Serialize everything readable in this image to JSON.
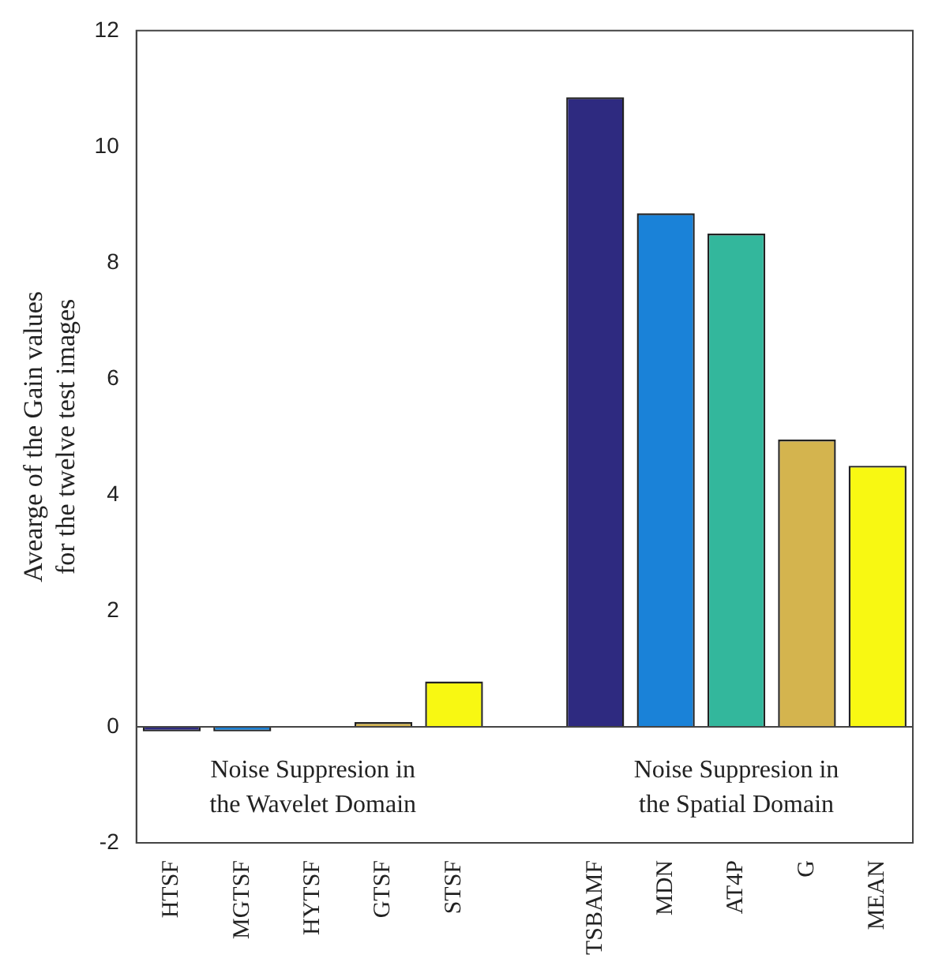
{
  "chart_data": {
    "type": "bar",
    "ylabel": "Avearge of the Gain values\nfor the twelve test images",
    "categories": [
      "HTSF",
      "MGTSF",
      "HYTSF",
      "GTSF",
      "STSF",
      null,
      "TSBAMF",
      "MDN",
      "AT4P",
      "G",
      "MEAN"
    ],
    "values": [
      -0.08,
      -0.08,
      0,
      0.08,
      0.78,
      null,
      10.85,
      8.85,
      8.5,
      4.95,
      4.5
    ],
    "colors": [
      "#2e2a80",
      "#1a82d8",
      "#33b79c",
      "#d4b44e",
      "#f8f812",
      null,
      "#2e2a80",
      "#1a82d8",
      "#33b79c",
      "#d4b44e",
      "#f8f812"
    ],
    "ylim": [
      -2,
      12
    ],
    "yticks": [
      -2,
      0,
      2,
      4,
      6,
      8,
      10,
      12
    ],
    "annotations": [
      "Noise Suppresion in\nthe Wavelet Domain",
      "Noise Suppresion in\nthe Spatial Domain"
    ]
  }
}
